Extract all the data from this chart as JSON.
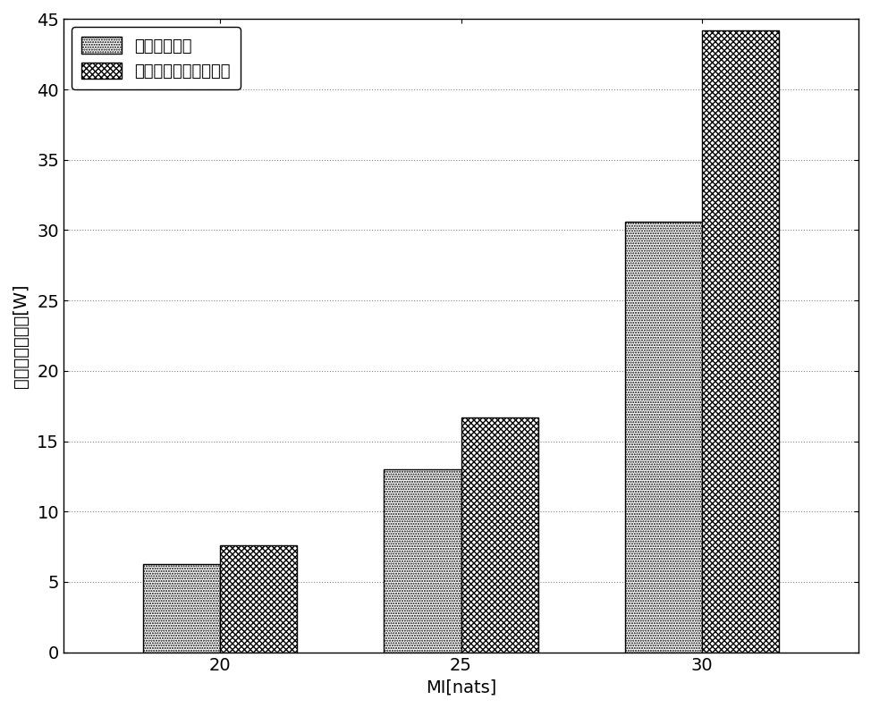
{
  "categories": [
    20,
    25,
    30
  ],
  "series1_label": "最优发射波形",
  "series2_label": "均匀功率分配发射波形",
  "series1_values": [
    6.3,
    13.0,
    30.6
  ],
  "series2_values": [
    7.6,
    16.7,
    44.2
  ],
  "xlabel": "MI[nats]",
  "ylabel": "雷达发射总功率[W]",
  "ylim": [
    0,
    45
  ],
  "yticks": [
    0,
    5,
    10,
    15,
    20,
    25,
    30,
    35,
    40,
    45
  ],
  "bar_width": 0.32,
  "background_color": "#ffffff",
  "grid_color": "#888888",
  "axis_fontsize": 14,
  "tick_fontsize": 14,
  "legend_fontsize": 13
}
